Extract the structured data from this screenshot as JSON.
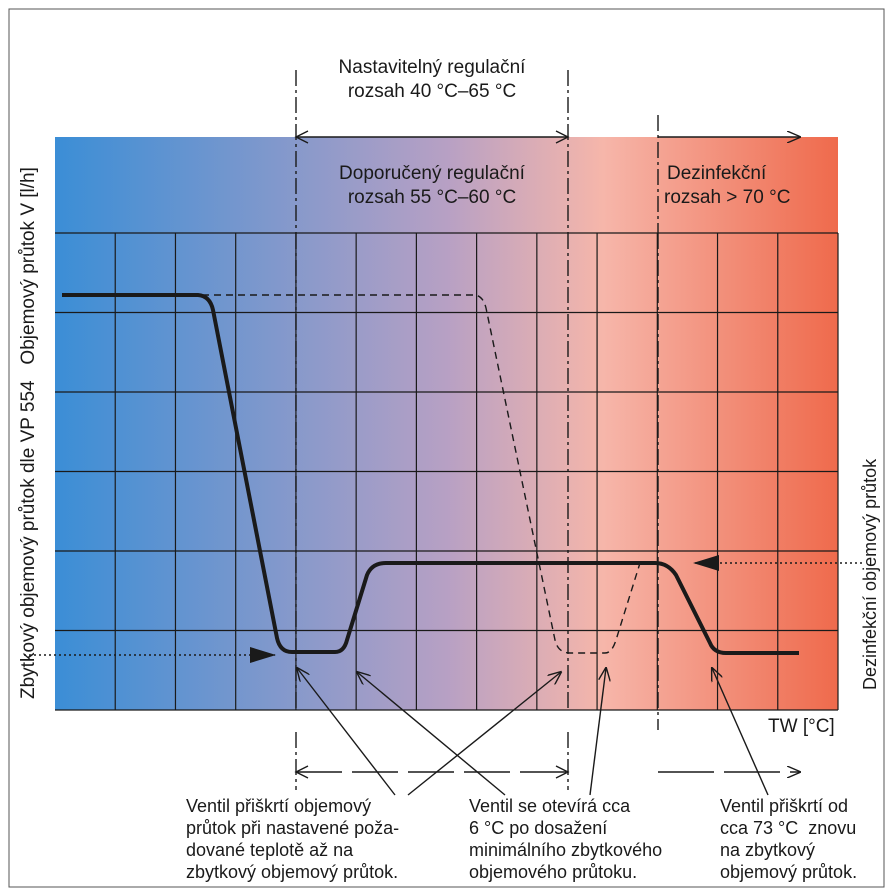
{
  "header": {
    "adjustable_range_line1": "Nastavitelný regulační",
    "adjustable_range_line2": "rozsah 40 °C–65 °C",
    "recommended_range_line1": "Doporučený regulační",
    "recommended_range_line2": "rozsah 55 °C–60 °C",
    "disinfection_range_line1": "Dezinfekční",
    "disinfection_range_line2": "rozsah > 70 °C"
  },
  "axes": {
    "y_label_left": "Zbytkový objemový průtok dle VP 554   Objemový průtok V [l/h]",
    "y_label_right": "Dezinfekční objemový průtok",
    "x_label": "TW [°C]"
  },
  "notes": {
    "left": [
      "Ventil přiškrtí objemový",
      "průtok při nastavené poža-",
      "dované teplotě až na",
      "zbytkový objemový průtok."
    ],
    "middle": [
      "Ventil se otevírá cca",
      "6 °C po dosažení",
      "minimálního zbytkového",
      "objemového průtoku."
    ],
    "right": [
      "Ventil přiškrtí od",
      "cca 73 °C  znovu",
      "na zbytkový",
      "objemový průtok."
    ]
  },
  "colors": {
    "gradient_blue": "#3b8ed6",
    "gradient_mauve": "#b7a0c4",
    "gradient_pink": "#f6b6aa",
    "gradient_red": "#ef6a4c",
    "curve": "#1a1a1a"
  }
}
